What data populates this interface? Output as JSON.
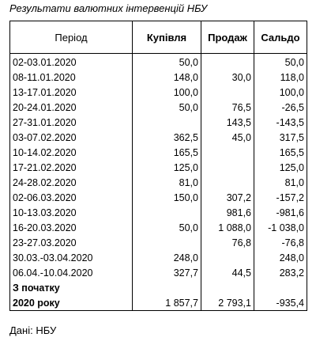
{
  "title": "Результати валютних інтервенцій НБУ",
  "headers": {
    "period": "Період",
    "buy": "Купівля",
    "sell": "Продаж",
    "balance": "Сальдо"
  },
  "rows": [
    {
      "period": "02-03.01.2020",
      "buy": "50,0",
      "sell": "",
      "balance": "50,0"
    },
    {
      "period": "08-11.01.2020",
      "buy": "148,0",
      "sell": "30,0",
      "balance": "118,0"
    },
    {
      "period": "13-17.01.2020",
      "buy": "100,0",
      "sell": "",
      "balance": "100,0"
    },
    {
      "period": "20-24.01.2020",
      "buy": "50,0",
      "sell": "76,5",
      "balance": "-26,5"
    },
    {
      "period": "27-31.01.2020",
      "buy": "",
      "sell": "143,5",
      "balance": "-143,5"
    },
    {
      "period": "03-07.02.2020",
      "buy": "362,5",
      "sell": "45,0",
      "balance": "317,5"
    },
    {
      "period": "10-14.02.2020",
      "buy": "165,5",
      "sell": "",
      "balance": "165,5"
    },
    {
      "period": "17-21.02.2020",
      "buy": "125,0",
      "sell": "",
      "balance": "125,0"
    },
    {
      "period": "24-28.02.2020",
      "buy": "81,0",
      "sell": "",
      "balance": "81,0"
    },
    {
      "period": "02-06.03.2020",
      "buy": "150,0",
      "sell": "307,2",
      "balance": "-157,2"
    },
    {
      "period": "10-13.03.2020",
      "buy": "",
      "sell": "981,6",
      "balance": "-981,6"
    },
    {
      "period": "16-20.03.2020",
      "buy": "50,0",
      "sell": "1 088,0",
      "balance": "-1 038,0"
    },
    {
      "period": "23-27.03.2020",
      "buy": "",
      "sell": "76,8",
      "balance": "-76,8"
    },
    {
      "period": "30.03.-03.04.2020",
      "buy": "248,0",
      "sell": "",
      "balance": "248,0"
    },
    {
      "period": "06.04.-10.04.2020",
      "buy": "327,7",
      "sell": "44,5",
      "balance": "283,2"
    }
  ],
  "total": {
    "label_line1": "З початку",
    "label_line2": "2020 року",
    "buy": "1 857,7",
    "sell": "2 793,1",
    "balance": "-935,4"
  },
  "source": "Дані: НБУ"
}
